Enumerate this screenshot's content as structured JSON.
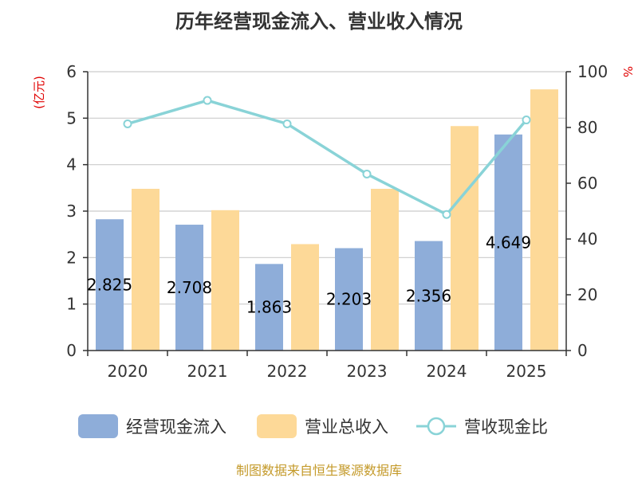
{
  "chart_data": {
    "type": "bar",
    "title": "历年经营现金流入、营业收入情况",
    "categories": [
      "2020",
      "2021",
      "2022",
      "2023",
      "2024",
      "2025"
    ],
    "series": [
      {
        "name": "经营现金流入",
        "type": "bar",
        "axis": "left",
        "values": [
          2.825,
          2.708,
          1.863,
          2.203,
          2.356,
          4.649
        ],
        "data_labels": [
          "2.825",
          "2.708",
          "1.863",
          "2.203",
          "2.356",
          "4.649"
        ],
        "color": "#8eadd9"
      },
      {
        "name": "营业总收入",
        "type": "bar",
        "axis": "left",
        "values": [
          3.48,
          3.02,
          2.29,
          3.48,
          4.83,
          5.62
        ],
        "color": "#fdd998"
      },
      {
        "name": "营收现金比",
        "type": "line",
        "axis": "right",
        "values": [
          81.3,
          89.7,
          81.3,
          63.3,
          48.8,
          82.7
        ],
        "color": "#89d3d7"
      }
    ],
    "y_left": {
      "label": "(亿元)",
      "lim": [
        0,
        6
      ],
      "ticks": [
        "0",
        "1",
        "2",
        "3",
        "4",
        "5",
        "6"
      ]
    },
    "y_right": {
      "label": "%",
      "lim": [
        0,
        100
      ],
      "ticks": [
        "0",
        "20",
        "40",
        "60",
        "80",
        "100"
      ]
    },
    "grid": true,
    "legend_position": "bottom"
  },
  "source": "制图数据来自恒生聚源数据库"
}
